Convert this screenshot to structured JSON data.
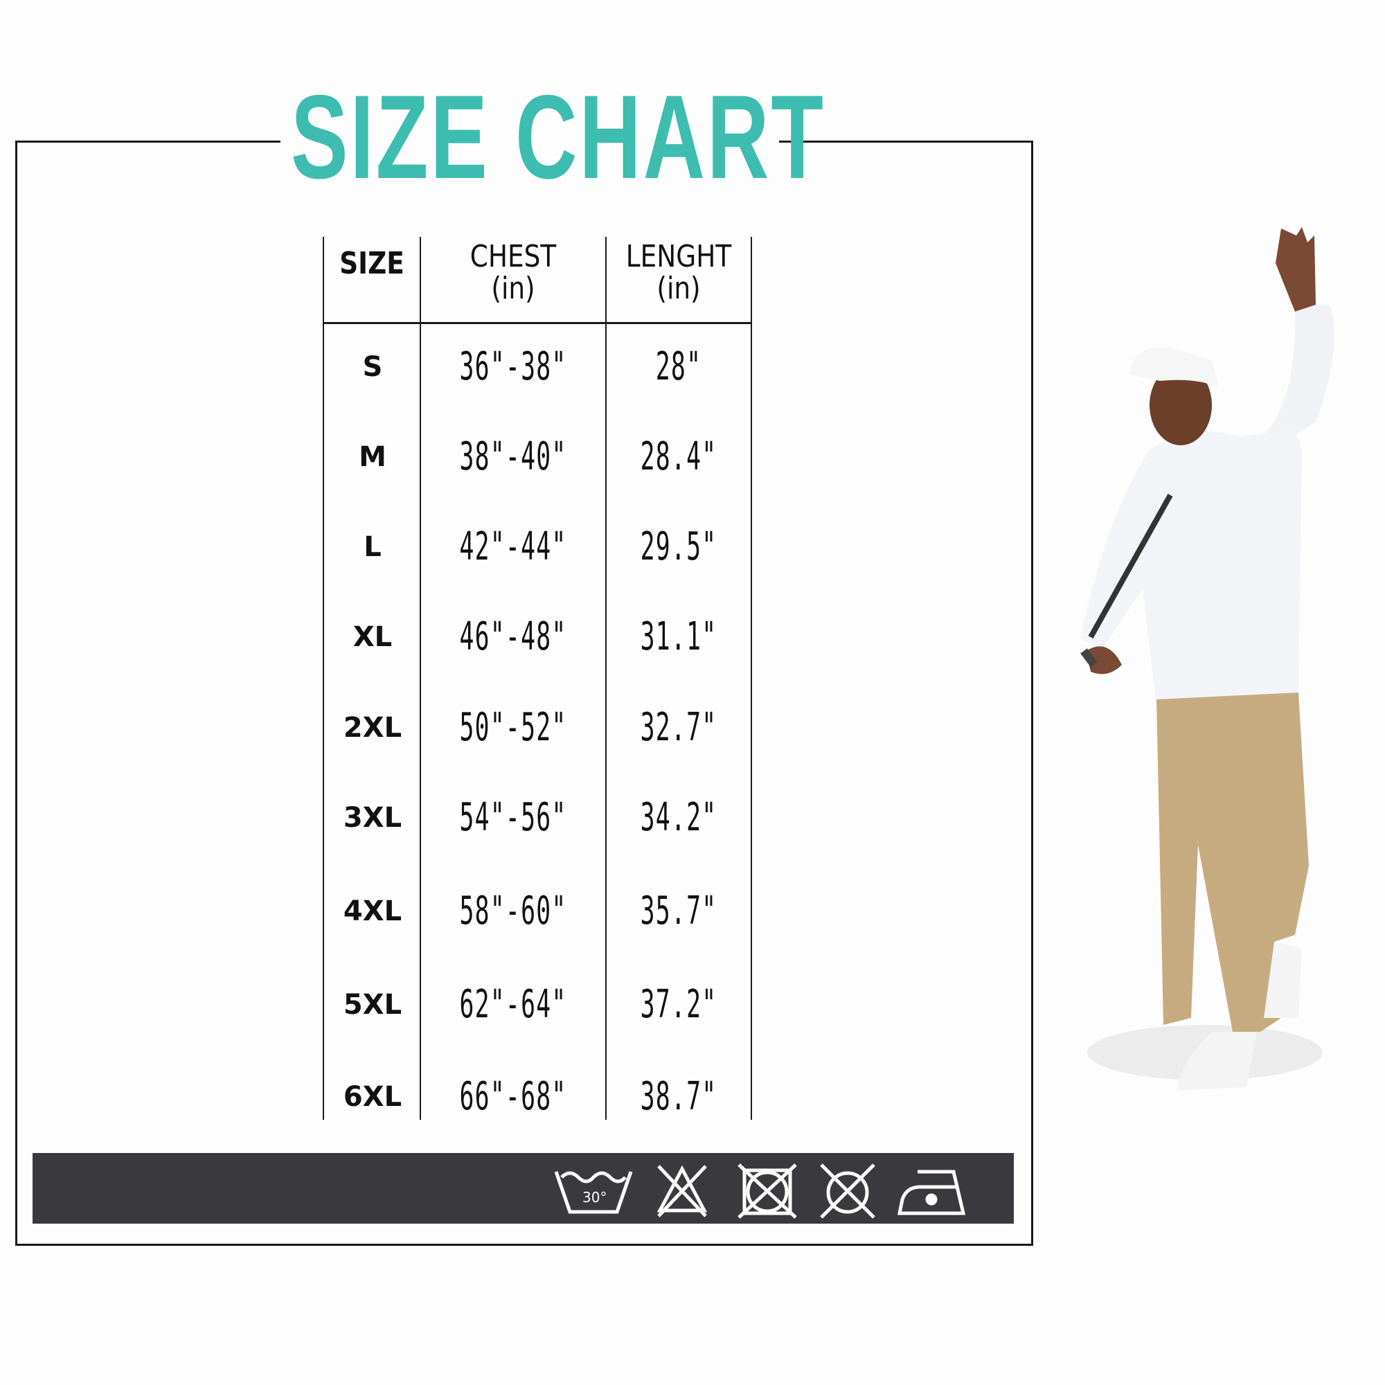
{
  "title": "SIZE CHART",
  "accent_color": "#3dbdb0",
  "table": {
    "headers": [
      {
        "label": "SIZE",
        "unit": ""
      },
      {
        "label": "CHEST",
        "unit": "(in)"
      },
      {
        "label": "LENGHT",
        "unit": "(in)"
      }
    ],
    "rows": [
      {
        "size": "S",
        "chest": "36\"-38\"",
        "length": "28\""
      },
      {
        "size": "M",
        "chest": "38\"-40\"",
        "length": "28.4\""
      },
      {
        "size": "L",
        "chest": "42\"-44\"",
        "length": "29.5\""
      },
      {
        "size": "XL",
        "chest": "46\"-48\"",
        "length": "31.1\""
      },
      {
        "size": "2XL",
        "chest": "50\"-52\"",
        "length": "32.7\""
      },
      {
        "size": "3XL",
        "chest": "54\"-56\"",
        "length": "34.2\""
      },
      {
        "size": "4XL",
        "chest": "58\"-60\"",
        "length": "35.7\""
      },
      {
        "size": "5XL",
        "chest": "62\"-64\"",
        "length": "37.2\""
      },
      {
        "size": "6XL",
        "chest": "66\"-68\"",
        "length": "38.7\""
      }
    ]
  },
  "care_icons": [
    {
      "name": "wash-30-icon",
      "label": "30°"
    },
    {
      "name": "do-not-bleach-icon"
    },
    {
      "name": "do-not-tumble-dry-icon"
    },
    {
      "name": "do-not-dry-clean-icon"
    },
    {
      "name": "iron-low-icon"
    }
  ],
  "model_image": "golfer-model-waving"
}
